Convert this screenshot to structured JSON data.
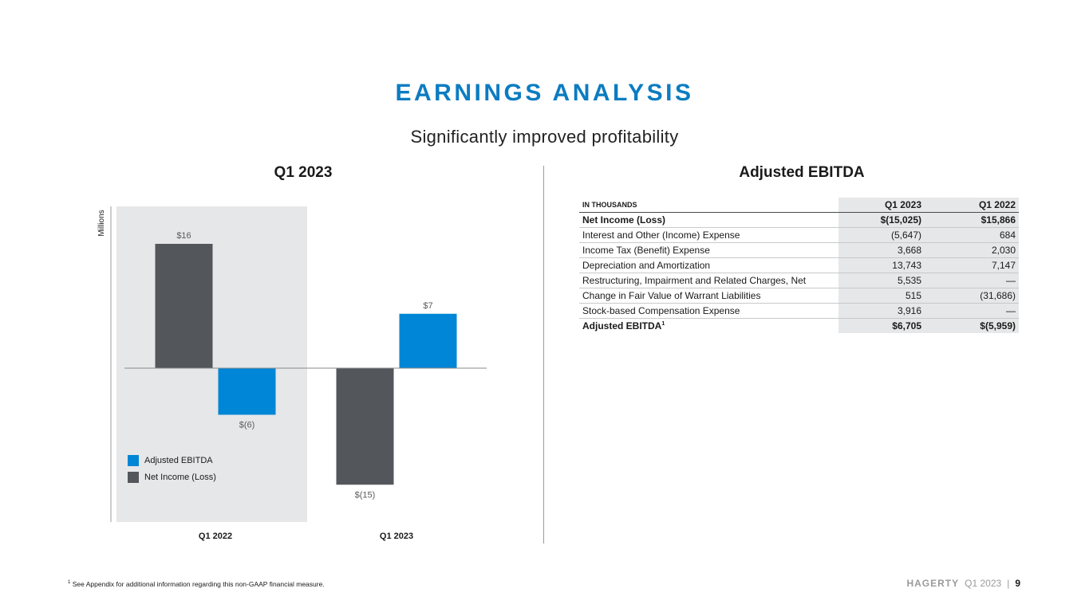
{
  "header": {
    "title": "EARNINGS ANALYSIS",
    "subtitle": "Significantly improved profitability"
  },
  "chart_section": {
    "title": "Q1 2023"
  },
  "chart_data": {
    "type": "bar",
    "title": "Q1 2023",
    "ylabel": "Millions",
    "categories": [
      "Q1 2022",
      "Q1 2023"
    ],
    "series": [
      {
        "name": "Net Income (Loss)",
        "values": [
          16,
          -15
        ],
        "labels": [
          "$16",
          "$(15)"
        ],
        "color": "#53565a"
      },
      {
        "name": "Adjusted EBITDA",
        "values": [
          -6,
          7
        ],
        "labels": [
          "$(6)",
          "$7"
        ],
        "color": "#0086d6"
      }
    ],
    "ylim": [
      -17,
      21
    ],
    "highlighted_category": "Q1 2022",
    "legend": [
      "Adjusted EBITDA",
      "Net Income (Loss)"
    ],
    "legend_position": "bottom-left"
  },
  "table_section": {
    "title": "Adjusted EBITDA",
    "header": {
      "label": "IN THOUSANDS",
      "col1": "Q1 2023",
      "col2": "Q1 2022"
    },
    "rows": [
      {
        "label": "Net Income (Loss)",
        "col1": "$(15,025)",
        "col2": "$15,866",
        "bold": true
      },
      {
        "label": "Interest and Other (Income) Expense",
        "col1": "(5,647)",
        "col2": "684"
      },
      {
        "label": "Income Tax (Benefit) Expense",
        "col1": "3,668",
        "col2": "2,030"
      },
      {
        "label": "Depreciation and Amortization",
        "col1": "13,743",
        "col2": "7,147"
      },
      {
        "label": "Restructuring, Impairment and Related Charges, Net",
        "col1": "5,535",
        "col2": "—"
      },
      {
        "label": "Change in Fair Value of Warrant Liabilities",
        "col1": "515",
        "col2": "(31,686)"
      },
      {
        "label": "Stock-based Compensation Expense",
        "col1": "3,916",
        "col2": "—"
      }
    ],
    "total": {
      "label": "Adjusted EBITDA",
      "sup": "1",
      "col1": "$6,705",
      "col2": "$(5,959)"
    }
  },
  "footnote": {
    "sup": "1",
    "text": "See Appendix for additional information regarding this non-GAAP financial measure."
  },
  "footer": {
    "brand": "HAGERTY",
    "period": "Q1 2023",
    "separator": "|",
    "page": "9"
  },
  "colors": {
    "accent": "#0b7cc1",
    "ebitda": "#0086d6",
    "net_income": "#53565a",
    "highlight_bg": "#e6e7e8"
  }
}
